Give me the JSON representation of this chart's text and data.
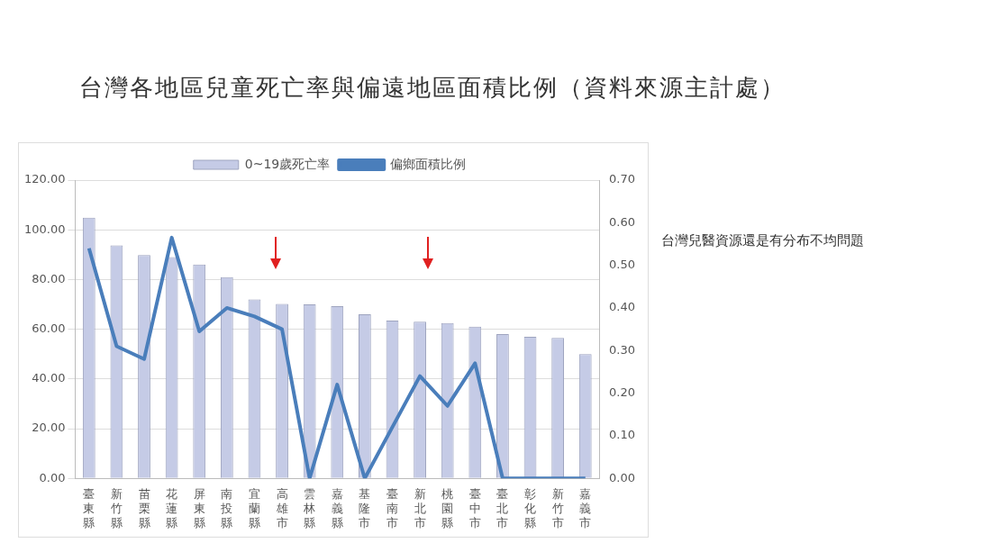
{
  "chart_data": {
    "type": "bar",
    "title": "台灣各地區兒童死亡率與偏遠地區面積比例（資料來源主計處）",
    "categories": [
      "臺東縣",
      "新竹縣",
      "苗栗縣",
      "花蓮縣",
      "屏東縣",
      "南投縣",
      "宜蘭縣",
      "高雄市",
      "雲林縣",
      "嘉義縣",
      "基隆市",
      "臺南市",
      "新北市",
      "桃園縣",
      "臺中市",
      "臺北市",
      "彰化縣",
      "新竹市",
      "嘉義市"
    ],
    "series": [
      {
        "name": "0~19歲死亡率",
        "color": "#c5cbe6",
        "values": [
          104.9,
          93.7,
          89.8,
          89,
          86,
          81,
          72,
          70.2,
          70,
          69.3,
          66,
          63.5,
          63,
          62.5,
          61,
          58,
          57,
          56.5,
          50
        ]
      },
      {
        "name": "偏鄉面積比例",
        "type": "line",
        "axis": "y2",
        "color": "#4a7ebb",
        "values": [
          0.54,
          0.31,
          0.28,
          0.565,
          0.345,
          0.4,
          0.38,
          0.35,
          0,
          0.22,
          0,
          0.12,
          0.24,
          0.17,
          0.27,
          0,
          0,
          0,
          0
        ]
      }
    ],
    "ylim": [
      0,
      120
    ],
    "yticks": [
      {
        "value": 0,
        "label": "0.00"
      },
      {
        "value": 20,
        "label": "20.00"
      },
      {
        "value": 40,
        "label": "40.00"
      },
      {
        "value": 60,
        "label": "60.00"
      },
      {
        "value": 80,
        "label": "80.00"
      },
      {
        "value": 100,
        "label": "100.00"
      },
      {
        "value": 120,
        "label": "120.00"
      }
    ],
    "y2lim": [
      0,
      0.7
    ],
    "y2ticks": [
      {
        "value": 0,
        "label": "0.00"
      },
      {
        "value": 0.1,
        "label": "0.10"
      },
      {
        "value": 0.2,
        "label": "0.20"
      },
      {
        "value": 0.3,
        "label": "0.30"
      },
      {
        "value": 0.4,
        "label": "0.40"
      },
      {
        "value": 0.5,
        "label": "0.50"
      },
      {
        "value": 0.6,
        "label": "0.60"
      },
      {
        "value": 0.7,
        "label": "0.70"
      }
    ],
    "grid": "y",
    "legend": "top",
    "marker": "none",
    "annotations": [
      "台灣兒醫資源還是有分布不均問題"
    ]
  }
}
